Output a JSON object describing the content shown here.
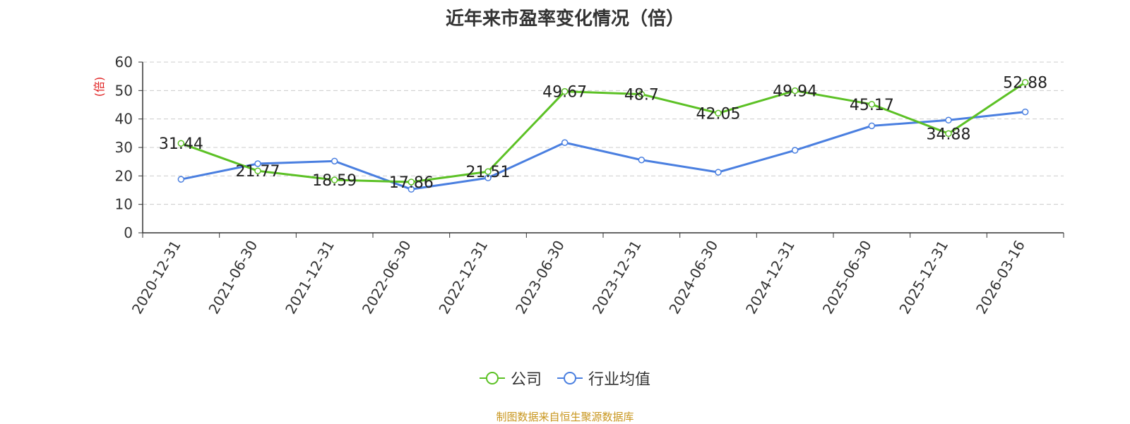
{
  "title": "近年来市盈率变化情况（倍）",
  "source": "制图数据来自恒生聚源数据库",
  "chart_data": {
    "type": "line",
    "title": "近年来市盈率变化情况（倍）",
    "ylabel": "(倍)",
    "ylim": [
      0,
      60
    ],
    "yticks": [
      0,
      10,
      20,
      30,
      40,
      50,
      60
    ],
    "grid": true,
    "legend_position": "bottom",
    "categories": [
      "2020-12-31",
      "2021-06-30",
      "2021-12-31",
      "2022-06-30",
      "2022-12-31",
      "2023-06-30",
      "2023-12-31",
      "2024-06-30",
      "2024-12-31",
      "2025-06-30",
      "2025-12-31",
      "2026-03-16"
    ],
    "series": [
      {
        "name": "公司",
        "color": "#5cc125",
        "show_labels": true,
        "values": [
          31.44,
          21.77,
          18.59,
          17.86,
          21.51,
          49.67,
          48.7,
          42.05,
          49.94,
          45.17,
          34.88,
          52.88
        ],
        "labels": [
          "31.44",
          "21.77",
          "18.59",
          "17.86",
          "21.51",
          "49.67",
          "48.7",
          "42.05",
          "49.94",
          "45.17",
          "34.88",
          "52.88"
        ]
      },
      {
        "name": "行业均值",
        "color": "#4a7fe0",
        "show_labels": false,
        "values": [
          18.8,
          24.3,
          25.2,
          15.3,
          19.3,
          31.7,
          25.6,
          21.3,
          29.0,
          37.6,
          39.6,
          42.5
        ]
      }
    ]
  }
}
